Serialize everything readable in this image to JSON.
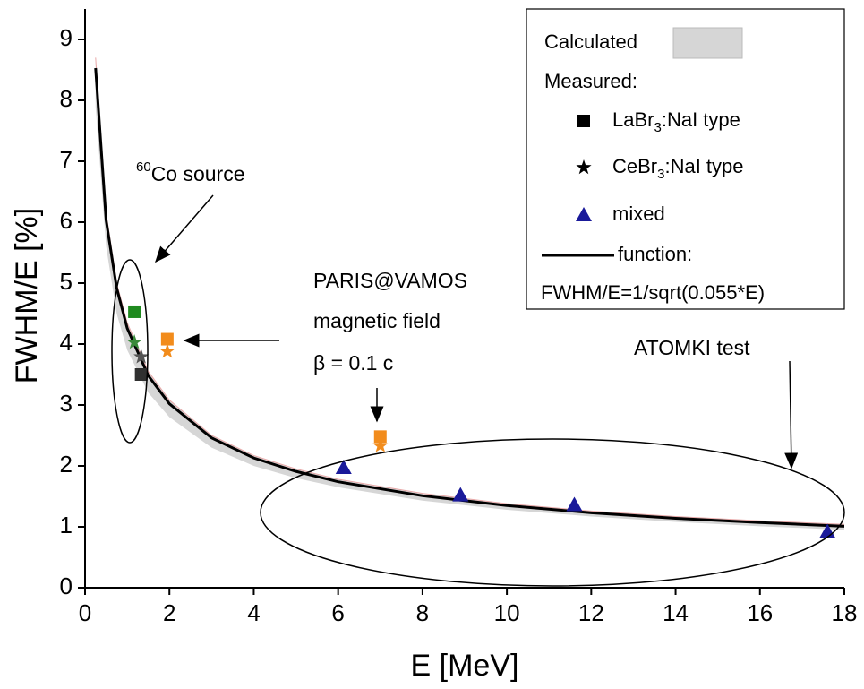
{
  "chart_data": {
    "type": "scatter",
    "xlabel": "E [MeV]",
    "ylabel": "FWHM/E [%]",
    "xlim": [
      0,
      18
    ],
    "ylim": [
      0,
      9.5
    ],
    "xticks": [
      0,
      2,
      4,
      6,
      8,
      10,
      12,
      14,
      16,
      18
    ],
    "yticks": [
      0,
      1,
      2,
      3,
      4,
      5,
      6,
      7,
      8,
      9
    ],
    "legend_position": "upper right",
    "legend_subtitle": "Measured:",
    "band": {
      "name": "Calculated",
      "color": "#d6d6d6",
      "edge_color": "#e8a8a8",
      "x": [
        0.25,
        0.5,
        0.75,
        1,
        1.5,
        2,
        3,
        4,
        5,
        6,
        8,
        10,
        12,
        14,
        16,
        18
      ],
      "lower": [
        7.9,
        5.6,
        4.5,
        3.9,
        3.2,
        2.8,
        2.3,
        2.0,
        1.8,
        1.65,
        1.43,
        1.28,
        1.17,
        1.08,
        1.01,
        0.95
      ],
      "upper": [
        8.7,
        6.15,
        5.0,
        4.35,
        3.55,
        3.08,
        2.5,
        2.17,
        1.95,
        1.78,
        1.55,
        1.38,
        1.26,
        1.17,
        1.1,
        1.04
      ]
    },
    "series": [
      {
        "name": "LaBr3:NaI type",
        "marker": "square",
        "color": "#000000",
        "x": [
          1.17,
          1.33,
          1.95,
          7.0
        ],
        "values": [
          4.53,
          3.5,
          4.08,
          2.48
        ],
        "point_colors": [
          "#1f8a1f",
          "#303030",
          "#f28c1c",
          "#f28c1c"
        ]
      },
      {
        "name": "CeBr3:NaI type",
        "marker": "star",
        "color": "#000000",
        "x": [
          1.17,
          1.33,
          1.95,
          7.0
        ],
        "values": [
          4.03,
          3.79,
          3.88,
          2.33
        ],
        "point_colors": [
          "#3a8a3a",
          "#555555",
          "#f28c1c",
          "#f28c1c"
        ]
      },
      {
        "name": "mixed",
        "marker": "triangle",
        "color": "#1a1a9a",
        "x": [
          6.13,
          8.9,
          11.6,
          17.6
        ],
        "values": [
          1.97,
          1.52,
          1.36,
          0.92
        ]
      }
    ],
    "function": {
      "name": "function:",
      "formula": "FWHM/E=1/sqrt(0.055*E)",
      "color": "#000000",
      "x": [
        0.25,
        0.5,
        0.75,
        1,
        1.5,
        2,
        3,
        4,
        5,
        6,
        8,
        10,
        12,
        14,
        16,
        18
      ],
      "values": [
        8.53,
        6.03,
        4.92,
        4.26,
        3.48,
        3.02,
        2.46,
        2.13,
        1.91,
        1.74,
        1.51,
        1.35,
        1.23,
        1.14,
        1.07,
        1.01
      ]
    },
    "annotations": [
      "60Co source",
      "PARIS@VAMOS",
      "magnetic field",
      "β = 0.1 c",
      "ATOMKI test"
    ]
  }
}
